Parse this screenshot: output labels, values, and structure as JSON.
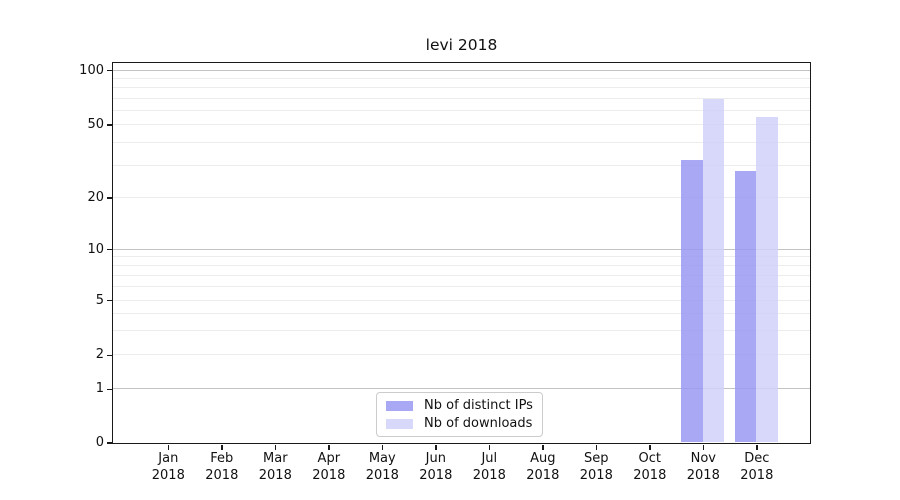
{
  "title": "levi 2018",
  "chart_data": {
    "type": "bar",
    "title": "levi 2018",
    "categories": [
      "Jan",
      "Feb",
      "Mar",
      "Apr",
      "May",
      "Jun",
      "Jul",
      "Aug",
      "Sep",
      "Oct",
      "Nov",
      "Dec"
    ],
    "year_label": "2018",
    "series": [
      {
        "name": "Nb of distinct IPs",
        "color": "rgba(153,153,243,0.85)",
        "values": [
          0,
          0,
          0,
          0,
          0,
          0,
          0,
          0,
          0,
          0,
          32,
          28
        ]
      },
      {
        "name": "Nb of downloads",
        "color": "rgba(209,209,249,0.85)",
        "values": [
          0,
          0,
          0,
          0,
          0,
          0,
          0,
          0,
          0,
          0,
          69,
          55
        ]
      }
    ],
    "yticks": [
      0,
      1,
      2,
      5,
      10,
      20,
      50,
      100
    ],
    "grid_major": [
      1,
      10,
      100
    ],
    "grid_minor": [
      2,
      3,
      4,
      5,
      6,
      7,
      8,
      9,
      20,
      30,
      40,
      50,
      60,
      70,
      80,
      90
    ],
    "ylim": [
      0,
      110
    ],
    "yscale": "symlog",
    "xlabel": "",
    "ylabel": "",
    "grid": true,
    "legend_position": "lower center"
  }
}
